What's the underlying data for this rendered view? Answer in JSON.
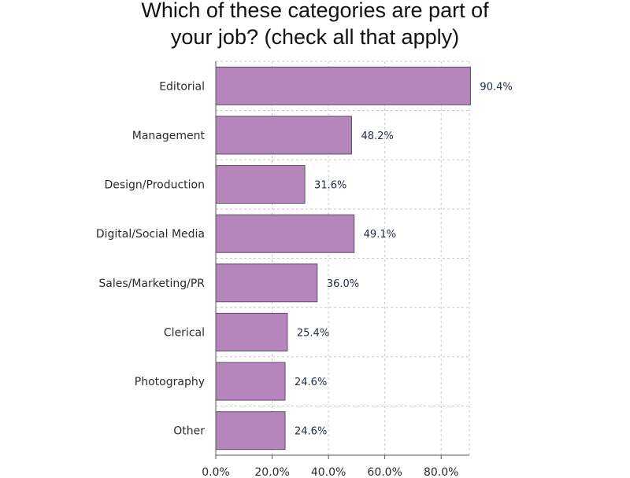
{
  "chart_data": {
    "type": "bar",
    "orientation": "horizontal",
    "title_lines": [
      "Which of these categories are part of",
      "your job? (check all that apply)"
    ],
    "categories": [
      "Editorial",
      "Management",
      "Design/Production",
      "Digital/Social Media",
      "Sales/Marketing/PR",
      "Clerical",
      "Photography",
      "Other"
    ],
    "values": [
      90.4,
      48.2,
      31.6,
      49.1,
      36.0,
      25.4,
      24.6,
      24.6
    ],
    "value_labels": [
      "90.4%",
      "48.2%",
      "31.6%",
      "49.1%",
      "36.0%",
      "25.4%",
      "24.6%",
      "24.6%"
    ],
    "xlim": [
      0,
      90
    ],
    "x_ticks": [
      0,
      20,
      40,
      60,
      80
    ],
    "x_tick_labels": [
      "0.0%",
      "20.0%",
      "40.0%",
      "60.0%",
      "80.0%"
    ],
    "grid": true,
    "legend": "none",
    "bar_color": "#b585bb",
    "bar_edge_color": "#5a4a6a",
    "grid_color": "#c8c8c8"
  }
}
